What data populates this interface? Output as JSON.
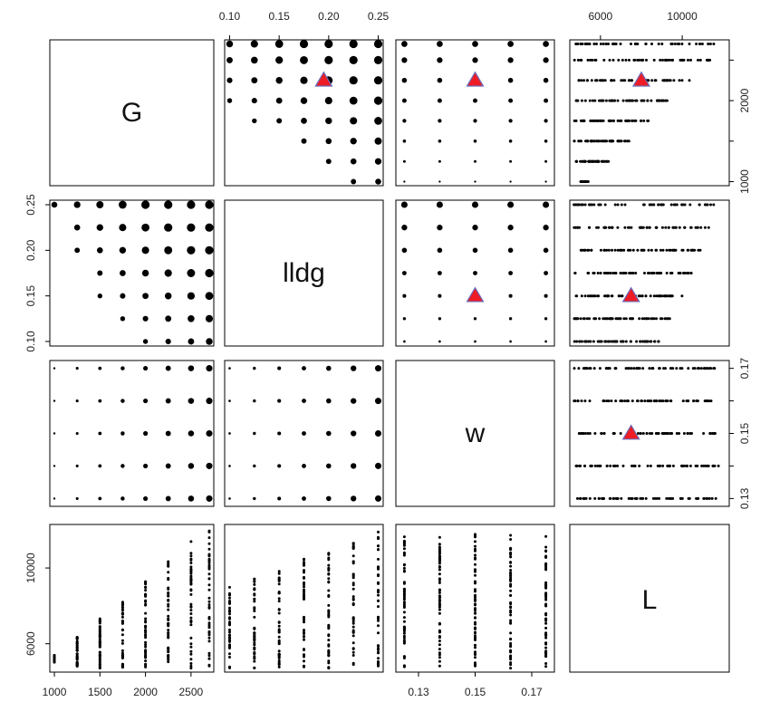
{
  "colors": {
    "frame": "#000000",
    "point": "#000000",
    "marker_fill": "#ee1c25",
    "marker_stroke": "#6b6bb8"
  },
  "chart_data": {
    "type": "scatter",
    "variables": [
      "G",
      "lldg",
      "w",
      "L"
    ],
    "axes": {
      "G": {
        "range": [
          950,
          2750
        ],
        "ticks": [
          1000,
          2000
        ],
        "tick_labels": [
          "1000",
          "2000"
        ],
        "levels": [
          1000,
          1250,
          1500,
          1750,
          2000,
          2250,
          2500,
          2700
        ],
        "bottom_ticks": [
          1000,
          1500,
          2000,
          2500
        ],
        "bottom_tick_labels": [
          "1000",
          "1500",
          "2000",
          "2500"
        ]
      },
      "lldg": {
        "range": [
          0.095,
          0.255
        ],
        "ticks": [
          0.1,
          0.15,
          0.2,
          0.25
        ],
        "tick_labels": [
          "0.10",
          "0.15",
          "0.20",
          "0.25"
        ],
        "levels": [
          0.1,
          0.125,
          0.15,
          0.175,
          0.2,
          0.225,
          0.25
        ]
      },
      "w": {
        "range": [
          0.122,
          0.178
        ],
        "ticks": [
          0.13,
          0.15,
          0.17
        ],
        "tick_labels": [
          "0.13",
          "0.15",
          "0.17"
        ],
        "levels": [
          0.125,
          0.1375,
          0.15,
          0.1625,
          0.175
        ]
      },
      "L": {
        "range": [
          4500,
          12300
        ],
        "ticks": [
          6000,
          10000
        ],
        "tick_labels": [
          "6000",
          "10000"
        ]
      }
    },
    "right_axis_G": {
      "ticks": [
        1000,
        1500,
        2000,
        2500
      ],
      "tick_labels": [
        "1000",
        "",
        "2000",
        ""
      ]
    },
    "right_axis_w": {
      "ticks": [
        0.125,
        0.1375,
        0.15,
        0.1625,
        0.175
      ],
      "tick_labels": [
        "0.13",
        "",
        "0.15",
        "",
        "0.17"
      ]
    },
    "L_max_by_G": {
      "1000": 5400,
      "1250": 6400,
      "1500": 7400,
      "1750": 8400,
      "2000": 9300,
      "2250": 10400,
      "2500": 11400,
      "2700": 12000
    },
    "L_min_by_G": {
      "1000": 5000,
      "1250": 4800,
      "1500": 4700,
      "1750": 4700,
      "2000": 4700,
      "2250": 4700,
      "2500": 4700,
      "2700": 4700
    },
    "highlight": {
      "G": 2250,
      "lldg": 0.15,
      "w": 0.15,
      "L": 8000
    },
    "diagonal_labels": [
      "G",
      "lldg",
      "w",
      "L"
    ],
    "grid": false,
    "legend": "none"
  }
}
